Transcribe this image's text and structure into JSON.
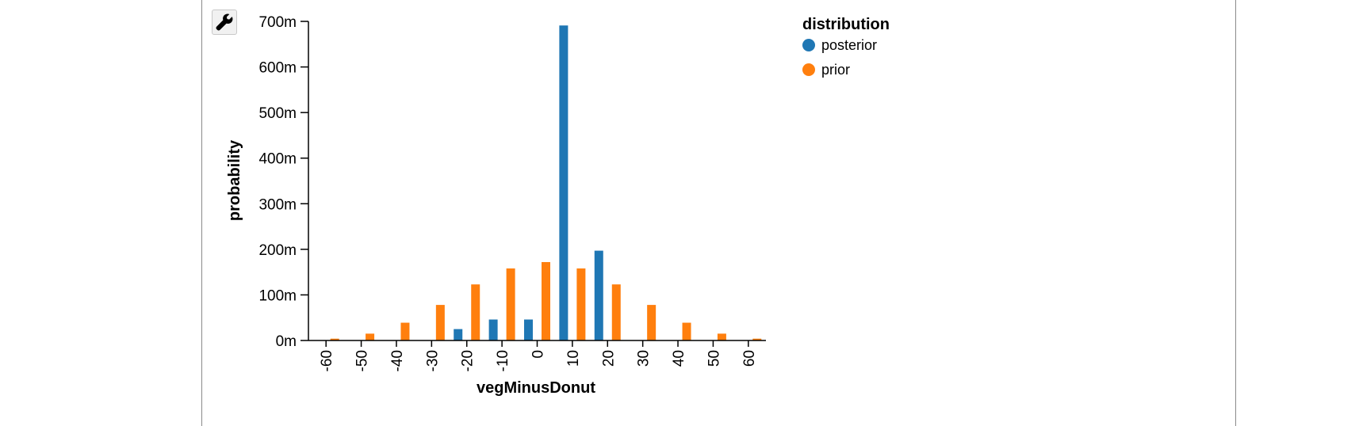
{
  "toolbar": {
    "tool_icon": "wrench-icon"
  },
  "colors": {
    "posterior": "#1f77b4",
    "prior": "#ff7f0e",
    "axis": "#000000"
  },
  "chart_data": {
    "type": "bar",
    "xlabel": "vegMinusDonut",
    "ylabel": "probability",
    "categories": [
      "-60",
      "-50",
      "-40",
      "-30",
      "-20",
      "-10",
      "0",
      "10",
      "20",
      "30",
      "40",
      "50",
      "60"
    ],
    "series": [
      {
        "name": "posterior",
        "color": "#1f77b4",
        "values": [
          0,
          0,
          0,
          0,
          0.025,
          0.046,
          0.046,
          0.691,
          0.197,
          0,
          0,
          0,
          0
        ]
      },
      {
        "name": "prior",
        "color": "#ff7f0e",
        "values": [
          0.004,
          0.015,
          0.039,
          0.078,
          0.123,
          0.158,
          0.172,
          0.158,
          0.123,
          0.078,
          0.039,
          0.015,
          0.004
        ]
      }
    ],
    "ylim": [
      0,
      0.7
    ],
    "yticks": [
      0,
      0.1,
      0.2,
      0.3,
      0.4,
      0.5,
      0.6,
      0.7
    ],
    "ytick_labels": [
      "0m",
      "100m",
      "200m",
      "300m",
      "400m",
      "500m",
      "600m",
      "700m"
    ],
    "legend": {
      "title": "distribution",
      "position": "top-right",
      "entries": [
        "posterior",
        "prior"
      ]
    }
  }
}
